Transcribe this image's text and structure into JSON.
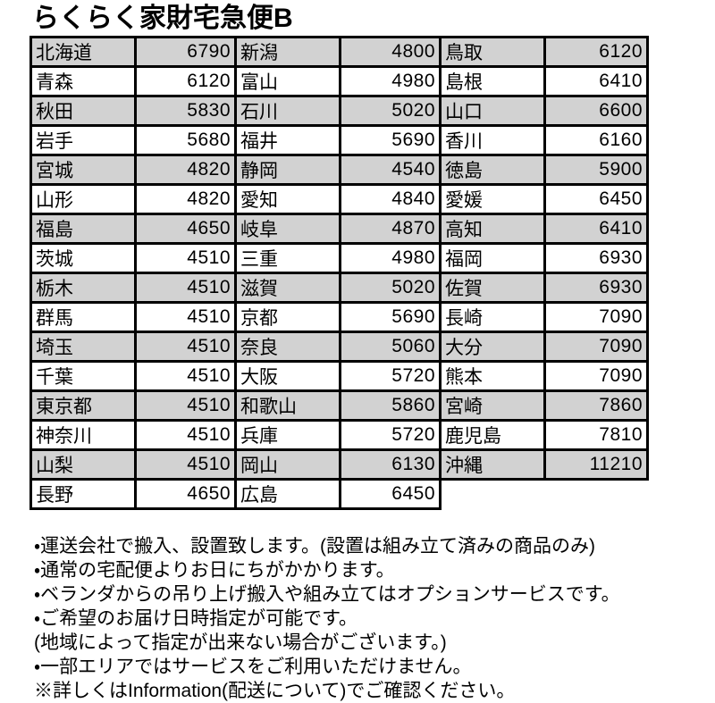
{
  "title": "らくらく家財宅急便B",
  "colors": {
    "row_shade": "#d2d2d2",
    "border": "#000000",
    "background": "#ffffff"
  },
  "table": {
    "groups": [
      {
        "rows": [
          {
            "prefecture": "北海道",
            "price": "6790"
          },
          {
            "prefecture": "青森",
            "price": "6120"
          },
          {
            "prefecture": "秋田",
            "price": "5830"
          },
          {
            "prefecture": "岩手",
            "price": "5680"
          },
          {
            "prefecture": "宮城",
            "price": "4820"
          },
          {
            "prefecture": "山形",
            "price": "4820"
          },
          {
            "prefecture": "福島",
            "price": "4650"
          },
          {
            "prefecture": "茨城",
            "price": "4510"
          },
          {
            "prefecture": "栃木",
            "price": "4510"
          },
          {
            "prefecture": "群馬",
            "price": "4510"
          },
          {
            "prefecture": "埼玉",
            "price": "4510"
          },
          {
            "prefecture": "千葉",
            "price": "4510"
          },
          {
            "prefecture": "東京都",
            "price": "4510"
          },
          {
            "prefecture": "神奈川",
            "price": "4510"
          },
          {
            "prefecture": "山梨",
            "price": "4510"
          },
          {
            "prefecture": "長野",
            "price": "4650"
          }
        ]
      },
      {
        "rows": [
          {
            "prefecture": "新潟",
            "price": "4800"
          },
          {
            "prefecture": "富山",
            "price": "4980"
          },
          {
            "prefecture": "石川",
            "price": "5020"
          },
          {
            "prefecture": "福井",
            "price": "5690"
          },
          {
            "prefecture": "静岡",
            "price": "4540"
          },
          {
            "prefecture": "愛知",
            "price": "4840"
          },
          {
            "prefecture": "岐阜",
            "price": "4870"
          },
          {
            "prefecture": "三重",
            "price": "4980"
          },
          {
            "prefecture": "滋賀",
            "price": "5020"
          },
          {
            "prefecture": "京都",
            "price": "5690"
          },
          {
            "prefecture": "奈良",
            "price": "5060"
          },
          {
            "prefecture": "大阪",
            "price": "5720"
          },
          {
            "prefecture": "和歌山",
            "price": "5860"
          },
          {
            "prefecture": "兵庫",
            "price": "5720"
          },
          {
            "prefecture": "岡山",
            "price": "6130"
          },
          {
            "prefecture": "広島",
            "price": "6450"
          }
        ]
      },
      {
        "rows": [
          {
            "prefecture": "鳥取",
            "price": "6120"
          },
          {
            "prefecture": "島根",
            "price": "6410"
          },
          {
            "prefecture": "山口",
            "price": "6600"
          },
          {
            "prefecture": "香川",
            "price": "6160"
          },
          {
            "prefecture": "徳島",
            "price": "5900"
          },
          {
            "prefecture": "愛媛",
            "price": "6450"
          },
          {
            "prefecture": "高知",
            "price": "6410"
          },
          {
            "prefecture": "福岡",
            "price": "6930"
          },
          {
            "prefecture": "佐賀",
            "price": "6930"
          },
          {
            "prefecture": "長崎",
            "price": "7090"
          },
          {
            "prefecture": "大分",
            "price": "7090"
          },
          {
            "prefecture": "熊本",
            "price": "7090"
          },
          {
            "prefecture": "宮崎",
            "price": "7860"
          },
          {
            "prefecture": "鹿児島",
            "price": "7810"
          },
          {
            "prefecture": "沖縄",
            "price": "11210"
          }
        ]
      }
    ]
  },
  "notes": [
    "・運送会社で搬入、設置致します。(設置は組み立て済みの商品のみ)",
    "・通常の宅配便よりお日にちがかかります。",
    "・ベランダからの吊り上げ搬入や組み立てはオプションサービスです。",
    "・ご希望のお届け日時指定が可能です。",
    "(地域によって指定が出来ない場合がございます。)",
    "・一部エリアではサービスをご利用いただけません。",
    "※詳しくはInformation(配送について)でご確認ください。"
  ]
}
